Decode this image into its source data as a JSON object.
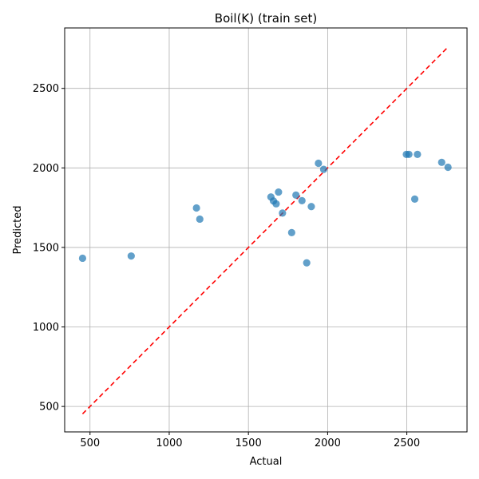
{
  "chart_data": {
    "type": "scatter",
    "title": "Boil(K) (train set)",
    "xlabel": "Actual",
    "ylabel": "Predicted",
    "xlim": [
      340,
      2880
    ],
    "ylim": [
      340,
      2880
    ],
    "xticks": [
      500,
      1000,
      1500,
      2000,
      2500
    ],
    "yticks": [
      500,
      1000,
      1500,
      2000,
      2500
    ],
    "xtick_labels": [
      "500",
      "1000",
      "1500",
      "2000",
      "2500"
    ],
    "ytick_labels": [
      "500",
      "1000",
      "1500",
      "2000",
      "2500"
    ],
    "grid": true,
    "point_color": "#1f77b4",
    "reference_line": {
      "style": "dashed",
      "color": "#ff0000",
      "x": [
        453,
        2760
      ],
      "y": [
        453,
        2760
      ]
    },
    "series": [
      {
        "points": [
          {
            "x": 453,
            "y": 1432
          },
          {
            "x": 760,
            "y": 1446
          },
          {
            "x": 1172,
            "y": 1748
          },
          {
            "x": 1193,
            "y": 1678
          },
          {
            "x": 1642,
            "y": 1817
          },
          {
            "x": 1658,
            "y": 1792
          },
          {
            "x": 1675,
            "y": 1774
          },
          {
            "x": 1690,
            "y": 1848
          },
          {
            "x": 1715,
            "y": 1716
          },
          {
            "x": 1773,
            "y": 1593
          },
          {
            "x": 1800,
            "y": 1829
          },
          {
            "x": 1838,
            "y": 1794
          },
          {
            "x": 1868,
            "y": 1403
          },
          {
            "x": 1897,
            "y": 1757
          },
          {
            "x": 1942,
            "y": 2029
          },
          {
            "x": 1975,
            "y": 1991
          },
          {
            "x": 2497,
            "y": 2085
          },
          {
            "x": 2513,
            "y": 2085
          },
          {
            "x": 2550,
            "y": 1804
          },
          {
            "x": 2567,
            "y": 2085
          },
          {
            "x": 2720,
            "y": 2035
          },
          {
            "x": 2760,
            "y": 2004
          }
        ]
      }
    ]
  }
}
